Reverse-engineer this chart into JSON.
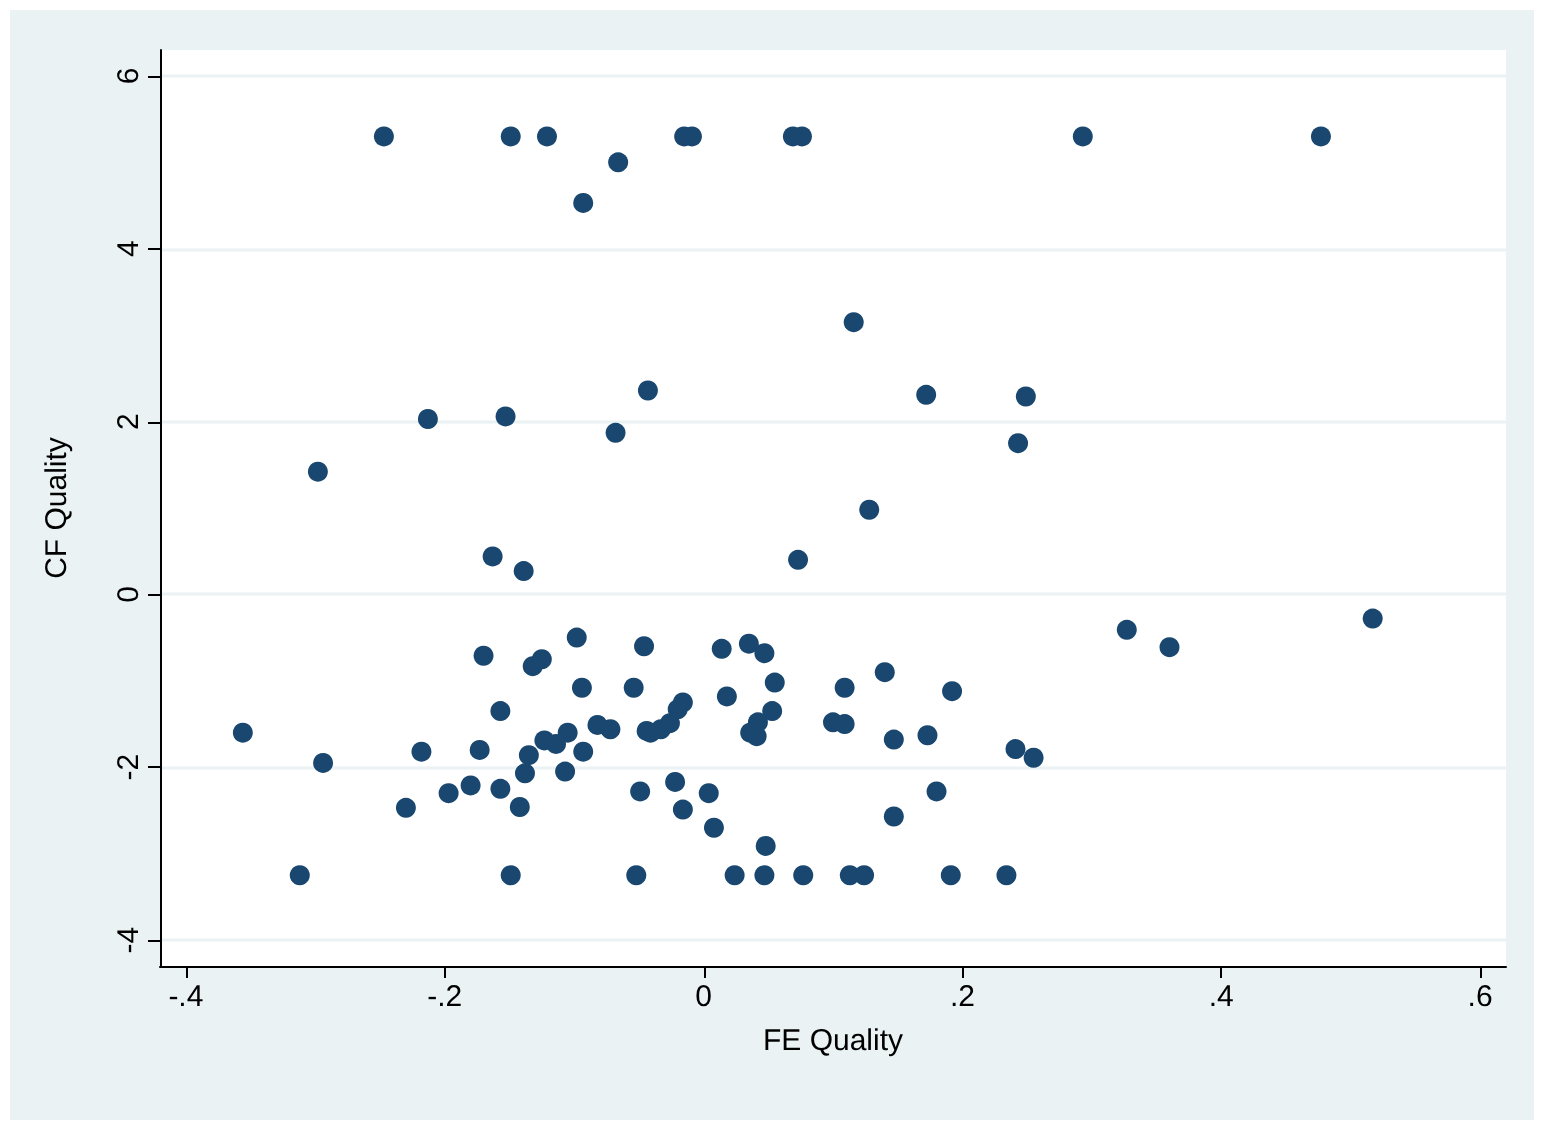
{
  "chart_data": {
    "type": "scatter",
    "xlabel": "FE Quality",
    "ylabel": "CF Quality",
    "grid": "y",
    "marker": "circle",
    "xlim": [
      -0.42,
      0.62
    ],
    "ylim": [
      -4.3,
      6.3
    ],
    "xticks": [
      {
        "value": -0.4,
        "label": "-.4"
      },
      {
        "value": -0.2,
        "label": "-.2"
      },
      0,
      {
        "value": 0.2,
        "label": ".2"
      },
      {
        "value": 0.4,
        "label": ".4"
      },
      {
        "value": 0.6,
        "label": ".6"
      }
    ],
    "yticks": [
      -4,
      -2,
      0,
      2,
      4,
      6
    ],
    "series": [
      {
        "color": "#1a476f",
        "x": [
          -0.247,
          -0.149,
          -0.121,
          -0.015,
          -0.009,
          0.069,
          0.076,
          0.293,
          0.477,
          -0.066,
          -0.093,
          0.116,
          -0.043,
          -0.213,
          -0.153,
          -0.068,
          -0.298,
          -0.163,
          -0.139,
          0.073,
          0.172,
          0.249,
          0.243,
          0.128,
          0.517,
          0.327,
          0.36,
          -0.356,
          -0.294,
          -0.312,
          -0.23,
          -0.218,
          -0.197,
          -0.18,
          -0.173,
          -0.17,
          -0.157,
          -0.157,
          -0.149,
          -0.142,
          -0.138,
          -0.135,
          -0.132,
          -0.125,
          -0.123,
          -0.114,
          -0.107,
          -0.105,
          -0.098,
          -0.094,
          -0.093,
          -0.082,
          -0.072,
          -0.054,
          -0.052,
          -0.049,
          -0.046,
          -0.044,
          -0.041,
          -0.033,
          -0.026,
          -0.02,
          -0.016,
          -0.022,
          -0.016,
          0.004,
          0.008,
          0.014,
          0.018,
          0.024,
          0.035,
          0.047,
          0.055,
          0.053,
          0.042,
          0.036,
          0.041,
          0.048,
          0.047,
          0.077,
          0.1,
          0.109,
          0.109,
          0.113,
          0.124,
          0.14,
          0.147,
          0.147,
          0.173,
          0.18,
          0.192,
          0.191,
          0.234,
          0.241,
          0.255
        ],
        "values": [
          5.3,
          5.3,
          5.3,
          5.3,
          5.3,
          5.3,
          5.3,
          5.3,
          5.3,
          5.0,
          4.53,
          3.15,
          2.36,
          2.03,
          2.06,
          1.87,
          1.42,
          0.44,
          0.27,
          0.4,
          2.31,
          2.29,
          1.75,
          0.98,
          -0.28,
          -0.41,
          -0.61,
          -1.6,
          -1.95,
          -3.25,
          -2.47,
          -1.82,
          -2.3,
          -2.21,
          -1.8,
          -0.71,
          -1.35,
          -2.25,
          -3.25,
          -2.46,
          -2.07,
          -1.86,
          -0.83,
          -0.75,
          -1.69,
          -1.73,
          -2.05,
          -1.6,
          -0.5,
          -1.08,
          -1.82,
          -1.51,
          -1.56,
          -1.08,
          -3.25,
          -2.28,
          -0.6,
          -1.58,
          -1.6,
          -1.56,
          -1.49,
          -1.33,
          -1.25,
          -2.17,
          -2.49,
          -2.3,
          -2.7,
          -0.63,
          -1.18,
          -3.25,
          -0.57,
          -0.68,
          -1.02,
          -1.35,
          -1.48,
          -1.6,
          -1.64,
          -2.91,
          -3.25,
          -3.25,
          -1.48,
          -1.5,
          -1.08,
          -3.25,
          -3.25,
          -0.9,
          -1.68,
          -2.57,
          -1.63,
          -2.28,
          -1.12,
          -3.25,
          -3.25,
          -1.79,
          -1.89
        ]
      }
    ]
  }
}
